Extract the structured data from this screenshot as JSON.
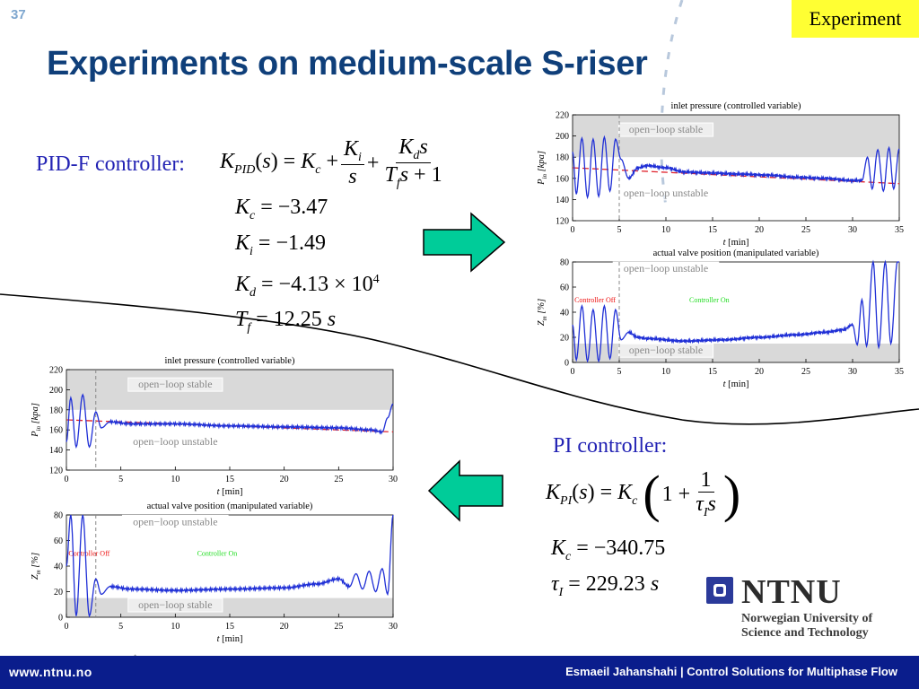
{
  "slide_number": "37",
  "tag": "Experiment",
  "title": "Experiments on medium-scale S-riser",
  "pidf": {
    "label": "PID-F controller:",
    "params": [
      {
        "sym": "K",
        "sub": "c",
        "value": "= −3.47"
      },
      {
        "sym": "K",
        "sub": "i",
        "value": "= −1.49"
      },
      {
        "sym": "K",
        "sub": "d",
        "value": "= −4.13 × 10",
        "sup": "4"
      },
      {
        "sym": "T",
        "sub": "f",
        "value": "= 12.25",
        "unit": "s"
      }
    ]
  },
  "pi": {
    "label": "PI controller:",
    "params": [
      {
        "sym": "K",
        "sub": "c",
        "value": "= −340.75"
      },
      {
        "sym": "τ",
        "sub": "I",
        "value": "= 229.23",
        "unit": "s"
      }
    ]
  },
  "plot_text": {
    "pressure_title": "inlet pressure (controlled variable)",
    "valve_title": "actual valve position (manipulated variable)",
    "xlabel_var": "t",
    "xlabel_unit": "[min]",
    "pressure_ylabel": "P",
    "pressure_ylabel_sub": "in",
    "pressure_ylabel_unit": "[kpa]",
    "valve_ylabel": "Z",
    "valve_ylabel_sub": "m",
    "valve_ylabel_unit": "[%]",
    "stable": "open−loop stable",
    "unstable": "open−loop unstable",
    "controller_off": "Controller Off",
    "controller_on": "Controller On"
  },
  "colors": {
    "signal": "#1f2fd6",
    "reference": "#e0222b",
    "band": "#d9d9d9",
    "arrow_fill": "#00cc99",
    "title": "#0f3f7a",
    "controller_label": "#2323b4",
    "controller_on": "#22dd22",
    "controller_off": "#ee1111",
    "footer": "#0a1d8c",
    "tag_bg": "#ffff33"
  },
  "chart_data": [
    {
      "type": "line",
      "id": "pidf-pressure",
      "title": "inlet pressure (controlled variable)",
      "xlabel": "t [min]",
      "ylabel": "P_in [kpa]",
      "xlim": [
        0,
        35
      ],
      "ylim": [
        120,
        220
      ],
      "xticks": [
        0,
        5,
        10,
        15,
        20,
        25,
        30,
        35
      ],
      "yticks": [
        120,
        140,
        160,
        180,
        200,
        220
      ],
      "controller_on_at": 5,
      "band": {
        "from": 180,
        "to": 220,
        "label": "open−loop stable"
      },
      "region_labels": [
        {
          "text": "open−loop stable",
          "x": 10,
          "y": 203
        },
        {
          "text": "open−loop unstable",
          "x": 10,
          "y": 143
        }
      ],
      "setpoint": [
        {
          "x": 0,
          "y": 170
        },
        {
          "x": 35,
          "y": 155
        }
      ],
      "series": [
        {
          "values": [
            [
              0,
              185
            ],
            [
              0.4,
              145
            ],
            [
              1,
              198
            ],
            [
              1.6,
              142
            ],
            [
              2.2,
              197
            ],
            [
              2.8,
              143
            ],
            [
              3.4,
              199
            ],
            [
              4,
              148
            ],
            [
              4.6,
              197
            ],
            [
              5.2,
              178
            ],
            [
              6,
              160
            ],
            [
              7,
              170
            ],
            [
              8,
              172
            ],
            [
              10,
              170
            ],
            [
              12,
              166
            ],
            [
              15,
              165
            ],
            [
              18,
              164
            ],
            [
              21,
              163
            ],
            [
              24,
              161
            ],
            [
              27,
              160
            ],
            [
              30,
              158
            ],
            [
              31,
              158
            ],
            [
              31.6,
              180
            ],
            [
              32.1,
              150
            ],
            [
              32.7,
              187
            ],
            [
              33.3,
              148
            ],
            [
              33.9,
              189
            ],
            [
              34.4,
              150
            ],
            [
              35,
              188
            ]
          ]
        }
      ]
    },
    {
      "type": "line",
      "id": "pidf-valve",
      "title": "actual valve position (manipulated variable)",
      "xlabel": "t [min]",
      "ylabel": "Z_m [%]",
      "xlim": [
        0,
        35
      ],
      "ylim": [
        0,
        80
      ],
      "xticks": [
        0,
        5,
        10,
        15,
        20,
        25,
        30,
        35
      ],
      "yticks": [
        0,
        20,
        40,
        60,
        80
      ],
      "controller_on_at": 5,
      "band": {
        "from": 0,
        "to": 15,
        "label": "open−loop stable"
      },
      "region_labels": [
        {
          "text": "open−loop unstable",
          "x": 10,
          "y": 72
        },
        {
          "text": "open−loop stable",
          "x": 10,
          "y": 7
        }
      ],
      "annotations": [
        {
          "text": "Controller Off",
          "x": 0.2,
          "y": 48,
          "color": "#ee1111"
        },
        {
          "text": "Controller On",
          "x": 12.5,
          "y": 48,
          "color": "#22dd22"
        }
      ],
      "series": [
        {
          "values": [
            [
              0,
              30
            ],
            [
              0.4,
              2
            ],
            [
              1,
              45
            ],
            [
              1.6,
              1
            ],
            [
              2.2,
              42
            ],
            [
              2.8,
              1
            ],
            [
              3.4,
              45
            ],
            [
              4,
              3
            ],
            [
              4.6,
              42
            ],
            [
              5.2,
              18
            ],
            [
              6,
              24
            ],
            [
              7,
              20
            ],
            [
              8,
              19
            ],
            [
              12,
              17
            ],
            [
              16,
              18
            ],
            [
              20,
              20
            ],
            [
              24,
              22
            ],
            [
              27,
              24
            ],
            [
              29,
              26
            ],
            [
              30,
              30
            ],
            [
              30.5,
              14
            ],
            [
              31,
              50
            ],
            [
              31.5,
              13
            ],
            [
              32.2,
              80
            ],
            [
              32.8,
              12
            ],
            [
              33.5,
              80
            ],
            [
              34.1,
              15
            ],
            [
              34.8,
              80
            ],
            [
              35,
              80
            ]
          ]
        }
      ]
    },
    {
      "type": "line",
      "id": "pi-pressure",
      "title": "inlet pressure (controlled variable)",
      "xlabel": "t [min]",
      "ylabel": "P_in [kpa]",
      "xlim": [
        0,
        30
      ],
      "ylim": [
        120,
        220
      ],
      "xticks": [
        0,
        5,
        10,
        15,
        20,
        25,
        30
      ],
      "yticks": [
        120,
        140,
        160,
        180,
        200,
        220
      ],
      "controller_on_at": 2.7,
      "band": {
        "from": 180,
        "to": 220,
        "label": "open−loop stable"
      },
      "region_labels": [
        {
          "text": "open−loop stable",
          "x": 10,
          "y": 202
        },
        {
          "text": "open−loop unstable",
          "x": 10,
          "y": 145
        }
      ],
      "setpoint": [
        {
          "x": 0,
          "y": 170
        },
        {
          "x": 30,
          "y": 158
        }
      ],
      "series": [
        {
          "values": [
            [
              0,
              148
            ],
            [
              0.4,
              192
            ],
            [
              0.9,
              143
            ],
            [
              1.5,
              195
            ],
            [
              2.1,
              143
            ],
            [
              2.7,
              178
            ],
            [
              3.2,
              162
            ],
            [
              4,
              168
            ],
            [
              6,
              166
            ],
            [
              10,
              166
            ],
            [
              15,
              164
            ],
            [
              20,
              163
            ],
            [
              25,
              162
            ],
            [
              28,
              160
            ],
            [
              29,
              158
            ],
            [
              29.5,
              172
            ],
            [
              30,
              186
            ]
          ]
        }
      ]
    },
    {
      "type": "line",
      "id": "pi-valve",
      "title": "actual valve position (manipulated variable)",
      "xlabel": "t [min]",
      "ylabel": "Z_m [%]",
      "xlim": [
        0,
        30
      ],
      "ylim": [
        0,
        80
      ],
      "xticks": [
        0,
        5,
        10,
        15,
        20,
        25,
        30
      ],
      "yticks": [
        0,
        20,
        40,
        60,
        80
      ],
      "controller_on_at": 2.7,
      "band": {
        "from": 0,
        "to": 15,
        "label": "open−loop stable"
      },
      "region_labels": [
        {
          "text": "open−loop unstable",
          "x": 10,
          "y": 72
        },
        {
          "text": "open−loop stable",
          "x": 10,
          "y": 7
        }
      ],
      "annotations": [
        {
          "text": "Controller Off",
          "x": 0.2,
          "y": 48,
          "color": "#ee1111"
        },
        {
          "text": "Controller On",
          "x": 12,
          "y": 48,
          "color": "#22dd22"
        }
      ],
      "series": [
        {
          "values": [
            [
              0,
              40
            ],
            [
              0.4,
              80
            ],
            [
              0.9,
              1
            ],
            [
              1.5,
              80
            ],
            [
              2.1,
              1
            ],
            [
              2.7,
              30
            ],
            [
              3.2,
              18
            ],
            [
              4,
              24
            ],
            [
              6,
              22
            ],
            [
              10,
              21
            ],
            [
              15,
              22
            ],
            [
              20,
              23
            ],
            [
              23,
              26
            ],
            [
              25,
              30
            ],
            [
              26,
              24
            ],
            [
              26.6,
              34
            ],
            [
              27.2,
              22
            ],
            [
              27.8,
              36
            ],
            [
              28.4,
              20
            ],
            [
              29,
              38
            ],
            [
              29.5,
              18
            ],
            [
              30,
              80
            ]
          ]
        }
      ]
    }
  ],
  "footer": {
    "url": "www.ntnu.no",
    "credit": "Esmaeil Jahanshahi  |  Control Solutions for Multiphase Flow"
  },
  "logo": {
    "name": "NTNU",
    "line1": "Norwegian University of",
    "line2": "Science and Technology"
  }
}
